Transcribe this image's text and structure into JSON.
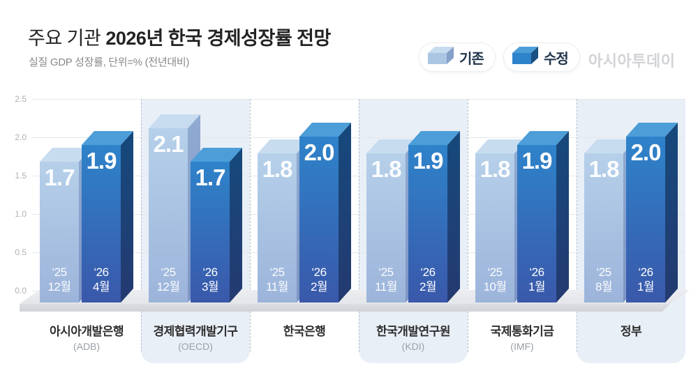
{
  "title": {
    "prefix": "주요 기관 ",
    "main": "2026년 한국 경제성장률 전망"
  },
  "subtitle": "실질 GDP 성장률, 단위=% (전년대비)",
  "logo": "아시아투데이",
  "legend": [
    {
      "id": "existing",
      "label": "기존"
    },
    {
      "id": "revised",
      "label": "수정"
    }
  ],
  "colors": {
    "existing": {
      "top": "#c8dcf0",
      "front_start": "#b6d0ea",
      "front_end": "#9cb4da",
      "side_start": "#90abd2",
      "side_end": "#7e95c5",
      "num": "rgba(255,255,255,0.93)",
      "date": "rgba(255,255,255,0.96)"
    },
    "revised": {
      "top": "#4d9ed8",
      "front_start": "#2e83ca",
      "front_end": "#3a58aa",
      "side_start": "#16497c",
      "side_end": "#243a70",
      "num": "#ffffff",
      "date": "#ffffff"
    },
    "band": "#e9eff7",
    "gridline": "#e4e8ed",
    "separator": "#b6c0ca",
    "floor_top": "#e4e6ea",
    "floor_front": "#d0d3d8",
    "legend_text": "#20344c",
    "logo_text": "#d2d3d6"
  },
  "chart_data": {
    "type": "bar",
    "title": "주요 기관 2026년 한국 경제성장률 전망",
    "subtitle": "실질 GDP 성장률, 단위=% (전년대비)",
    "unit": "%",
    "ylim": [
      0,
      2.5
    ],
    "yticks": [
      2.5,
      2.0,
      1.5,
      1.0,
      0.5,
      0.0
    ],
    "grid": true,
    "legend_position": "top-right",
    "series_names": [
      "기존",
      "수정"
    ],
    "groups": [
      {
        "institution": "아시아개발은행",
        "abbr": "(ADB)",
        "highlighted": false,
        "existing": {
          "value": 1.7,
          "label": "1.7",
          "date_line1": "‘25",
          "date_line2": "12월"
        },
        "revised": {
          "value": 1.9,
          "label": "1.9",
          "date_line1": "‘26",
          "date_line2": "4월"
        }
      },
      {
        "institution": "경제협력개발기구",
        "abbr": "(OECD)",
        "highlighted": true,
        "existing": {
          "value": 2.1,
          "label": "2.1",
          "date_line1": "‘25",
          "date_line2": "12월"
        },
        "revised": {
          "value": 1.7,
          "label": "1.7",
          "date_line1": "‘26",
          "date_line2": "3월"
        }
      },
      {
        "institution": "한국은행",
        "abbr": "",
        "highlighted": false,
        "existing": {
          "value": 1.8,
          "label": "1.8",
          "date_line1": "‘25",
          "date_line2": "11월"
        },
        "revised": {
          "value": 2.0,
          "label": "2.0",
          "date_line1": "‘26",
          "date_line2": "2월"
        }
      },
      {
        "institution": "한국개발연구원",
        "abbr": "(KDI)",
        "highlighted": true,
        "existing": {
          "value": 1.8,
          "label": "1.8",
          "date_line1": "‘25",
          "date_line2": "11월"
        },
        "revised": {
          "value": 1.9,
          "label": "1.9",
          "date_line1": "‘26",
          "date_line2": "2월"
        }
      },
      {
        "institution": "국제통화기금",
        "abbr": "(IMF)",
        "highlighted": false,
        "existing": {
          "value": 1.8,
          "label": "1.8",
          "date_line1": "‘25",
          "date_line2": "10월"
        },
        "revised": {
          "value": 1.9,
          "label": "1.9",
          "date_line1": "‘26",
          "date_line2": "1월"
        }
      },
      {
        "institution": "정부",
        "abbr": "",
        "highlighted": true,
        "existing": {
          "value": 1.8,
          "label": "1.8",
          "date_line1": "‘25",
          "date_line2": "8월"
        },
        "revised": {
          "value": 2.0,
          "label": "2.0",
          "date_line1": "‘26",
          "date_line2": "1월"
        }
      }
    ]
  }
}
